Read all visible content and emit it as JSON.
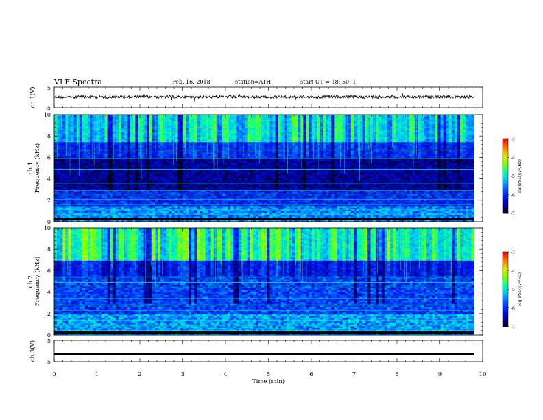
{
  "header": {
    "title": "VLF  Spectra",
    "date": "Feb. 16, 2018",
    "station": "station=ATH",
    "start": "start  UT  =   18: 50: 1"
  },
  "colors": {
    "trace": "#000000",
    "axis": "#000000",
    "colormap": [
      "#000000",
      "#0000c8",
      "#0040ff",
      "#00c8ff",
      "#00ff80",
      "#c8ff00",
      "#ff8000",
      "#ff0000",
      "#ffffff"
    ]
  },
  "chart_data": [
    {
      "type": "line",
      "name": "ch1-waveform",
      "ylabel": "ch.1(V)",
      "ylim": [
        -5,
        5
      ],
      "yticks": [
        "5",
        "-5"
      ],
      "xlim": [
        0,
        10
      ],
      "series": [
        {
          "values_description_level": 0.2,
          "level": 0.2
        }
      ]
    },
    {
      "type": "heatmap",
      "name": "ch1-spectrogram",
      "ylabel": "ch.1\nFrequency (kHz)",
      "ylim": [
        0,
        10
      ],
      "yticks": [
        "0",
        "2",
        "4",
        "6",
        "8",
        "10"
      ],
      "xlim": [
        0,
        10
      ],
      "colorbar": {
        "label": "log(PSD)(V²/Hz)",
        "range": [
          -7,
          -3
        ],
        "ticks": [
          "-3",
          "-4",
          "-5",
          "-6",
          "-7"
        ]
      }
    },
    {
      "type": "heatmap",
      "name": "ch2-spectrogram",
      "ylabel": "ch.2\nFrequency (kHz)",
      "ylim": [
        0,
        10
      ],
      "yticks": [
        "0",
        "2",
        "4",
        "6",
        "8",
        "10"
      ],
      "xlim": [
        0,
        10
      ],
      "colorbar": {
        "label": "log(PSD)(V²/Hz)",
        "range": [
          -7,
          -3
        ],
        "ticks": [
          "-3",
          "-4",
          "-5",
          "-6",
          "-7"
        ]
      }
    },
    {
      "type": "line",
      "name": "ch3-waveform",
      "ylabel": "ch.3(V)",
      "ylim": [
        -5,
        5
      ],
      "yticks": [
        "5",
        "-5"
      ],
      "xlim": [
        0,
        10
      ],
      "series": [
        {
          "level": -1.5
        }
      ]
    }
  ],
  "xaxis": {
    "label": "Time  (min)",
    "ticks": [
      "0",
      "1",
      "2",
      "3",
      "4",
      "5",
      "6",
      "7",
      "8",
      "9",
      "10"
    ],
    "data_end": 9.8
  }
}
